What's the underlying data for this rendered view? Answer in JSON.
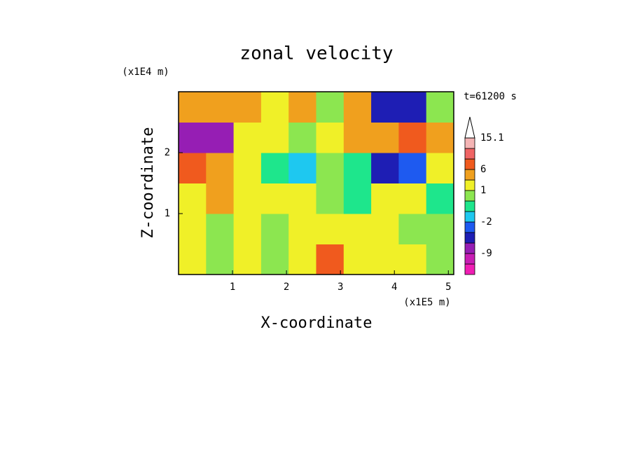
{
  "chart_data": {
    "type": "contour",
    "title": "zonal velocity",
    "x_label": "X-coordinate",
    "y_label": "Z-coordinate",
    "x_unit": "(x1E5 m)",
    "y_unit": "(x1E4 m)",
    "time_label": "t=61200 s",
    "xlim": [
      0,
      5.1
    ],
    "xticks": [
      1,
      2,
      3,
      4,
      5
    ],
    "ylim": [
      0,
      3
    ],
    "yticks": [
      1,
      2
    ],
    "x_edges": [
      0,
      0.51,
      1.02,
      1.53,
      2.04,
      2.55,
      3.06,
      3.57,
      4.08,
      4.59,
      5.1
    ],
    "y_edges": [
      0,
      0.5,
      1,
      1.5,
      2,
      2.5,
      3
    ],
    "values": [
      [
        1,
        0,
        1,
        0,
        1,
        7,
        2,
        1,
        1,
        0
      ],
      [
        1,
        0,
        1,
        0,
        1,
        2,
        1,
        1,
        0,
        0
      ],
      [
        2,
        3,
        1,
        2,
        1,
        0,
        -1,
        1,
        1,
        -1
      ],
      [
        6,
        3,
        1,
        -1,
        -2,
        0,
        -1,
        -6,
        -3,
        2
      ],
      [
        -8,
        -7,
        2,
        1,
        0,
        1,
        5,
        4,
        6,
        3
      ],
      [
        5,
        4,
        3,
        1,
        5,
        0,
        3,
        -6,
        -4,
        0
      ]
    ],
    "levels": [
      -15,
      -12,
      -9,
      -6,
      -3,
      -2,
      -1,
      0,
      1,
      3,
      6,
      9,
      12,
      15.1
    ],
    "colors": [
      "#f01eb4",
      "#c81eb4",
      "#961eb4",
      "#1e1eb4",
      "#1e5af0",
      "#1ec8f0",
      "#1ee68c",
      "#8ce650",
      "#f0f028",
      "#f0a01e",
      "#f05a1e",
      "#f06464",
      "#f4b4b4"
    ],
    "colorbar_ticks": [
      -9,
      -2,
      1,
      6,
      15.1
    ]
  }
}
